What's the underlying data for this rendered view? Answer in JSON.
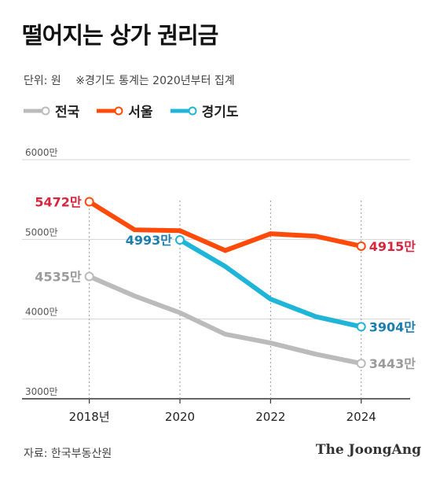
{
  "title": "떨어지는 상가 권리금",
  "subtitle": {
    "unit": "단위: 원",
    "note": "※경기도 통계는 2020년부터 집계"
  },
  "source": "자료: 한국부동산원",
  "brand": "The JoongAng",
  "chart_data": {
    "type": "line",
    "x": [
      2018,
      2019,
      2020,
      2021,
      2022,
      2023,
      2024
    ],
    "x_tick_values": [
      2018,
      2020,
      2022,
      2024
    ],
    "x_tick_labels": [
      "2018년",
      "2020",
      "2022",
      "2024"
    ],
    "y_tick_values": [
      3000,
      4000,
      5000,
      6000
    ],
    "y_tick_labels": [
      "3000만",
      "4000만",
      "5000만",
      "6000만"
    ],
    "ylim": [
      3000,
      6000
    ],
    "grid": true,
    "legend_position": "top-left",
    "series": [
      {
        "name": "전국",
        "color": "#bbbbbb",
        "label_color": "#9a9a9a",
        "x": [
          2018,
          2019,
          2020,
          2021,
          2022,
          2023,
          2024
        ],
        "values": [
          4535,
          4290,
          4080,
          3810,
          3700,
          3560,
          3443
        ],
        "labels": [
          {
            "x": 2018,
            "text": "4535만",
            "side": "left"
          },
          {
            "x": 2024,
            "text": "3443만",
            "side": "right"
          }
        ]
      },
      {
        "name": "서울",
        "color": "#ff4a0a",
        "label_color": "#d7263d",
        "x": [
          2018,
          2019,
          2020,
          2021,
          2022,
          2023,
          2024
        ],
        "values": [
          5472,
          5120,
          5110,
          4860,
          5070,
          5040,
          4915
        ],
        "labels": [
          {
            "x": 2018,
            "text": "5472만",
            "side": "left"
          },
          {
            "x": 2024,
            "text": "4915만",
            "side": "right"
          }
        ]
      },
      {
        "name": "경기도",
        "color": "#1fb5d8",
        "label_color": "#1a7fb0",
        "x": [
          2020,
          2021,
          2022,
          2023,
          2024
        ],
        "values": [
          4993,
          4660,
          4250,
          4030,
          3904
        ],
        "labels": [
          {
            "x": 2020,
            "text": "4993만",
            "side": "left"
          },
          {
            "x": 2024,
            "text": "3904만",
            "side": "right"
          }
        ]
      }
    ]
  }
}
